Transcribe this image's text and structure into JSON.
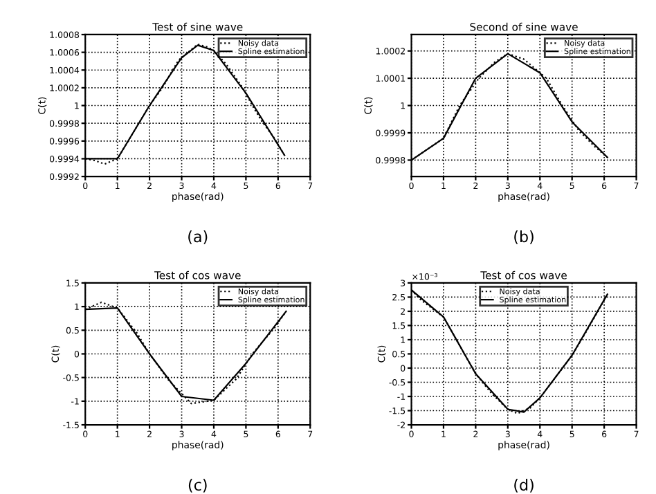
{
  "chart_data": [
    {
      "type": "line",
      "title": "Test of sine wave",
      "xlabel": "phase(rad)",
      "ylabel": "C(t)",
      "annotations": [
        "(a)"
      ],
      "legend": "top right",
      "grid": true,
      "xlim": [
        0,
        7
      ],
      "xticks": [
        0,
        1,
        2,
        3,
        4,
        5,
        6,
        7
      ],
      "ylim": [
        0.9992,
        1.0008
      ],
      "yticks": [
        0.9992,
        0.9994,
        0.9996,
        0.9998,
        1,
        1.0002,
        1.0004,
        1.0006,
        1.0008
      ],
      "series": [
        {
          "name": "Noisy data",
          "color": "#000000",
          "line_style": "dotted",
          "x": [
            0,
            0.3,
            0.6,
            1.0,
            1.5,
            2.0,
            2.4,
            2.9,
            3.2,
            3.5,
            3.8,
            4.0,
            4.4,
            4.9,
            5.2,
            5.5,
            5.85,
            6.2
          ],
          "values": [
            0.9994,
            0.99938,
            0.99934,
            0.9994,
            0.9997,
            1.0,
            1.0002,
            1.00051,
            1.0006,
            1.00069,
            1.00066,
            1.00062,
            1.00046,
            1.0002,
            1.0,
            0.99982,
            0.99965,
            0.99944
          ]
        },
        {
          "name": "Spline estimation",
          "color": "#000000",
          "line_style": "solid",
          "x": [
            0,
            1.0,
            2.0,
            3.0,
            3.5,
            4.0,
            5.0,
            6.2
          ],
          "values": [
            0.9994,
            0.9994,
            1.0,
            1.00054,
            1.00068,
            1.00062,
            1.00014,
            0.99944
          ]
        }
      ]
    },
    {
      "type": "line",
      "title": "Second of sine wave",
      "xlabel": "phase(rad)",
      "ylabel": "C(t)",
      "annotations": [
        "(b)"
      ],
      "legend": "top right",
      "grid": true,
      "xlim": [
        0,
        7
      ],
      "xticks": [
        0,
        1,
        2,
        3,
        4,
        5,
        6,
        7
      ],
      "ylim": [
        0.99974,
        1.00026
      ],
      "yticks": [
        0.9998,
        0.9999,
        1,
        1.0001,
        1.0002
      ],
      "series": [
        {
          "name": "Noisy data",
          "color": "#000000",
          "line_style": "dotted",
          "x": [
            0,
            0.5,
            1.0,
            1.5,
            2.1,
            2.6,
            3.0,
            3.5,
            4.2,
            4.7,
            5.2,
            5.7,
            6.1
          ],
          "values": [
            0.9998,
            0.99984,
            0.99988,
            1.0,
            1.0001,
            1.00016,
            1.00019,
            1.00017,
            1.0001,
            1.0,
            0.99991,
            0.99985,
            0.99981
          ]
        },
        {
          "name": "Spline estimation",
          "color": "#000000",
          "line_style": "solid",
          "x": [
            0,
            1.0,
            2.0,
            3.0,
            4.0,
            5.0,
            6.1
          ],
          "values": [
            0.9998,
            0.99988,
            1.0001,
            1.00019,
            1.00012,
            0.99994,
            0.99981
          ]
        }
      ]
    },
    {
      "type": "line",
      "title": "Test of cos wave",
      "xlabel": "phase(rad)",
      "ylabel": "C(t)",
      "annotations": [
        "(c)"
      ],
      "legend": "top right",
      "grid": true,
      "xlim": [
        0,
        7
      ],
      "xticks": [
        0,
        1,
        2,
        3,
        4,
        5,
        6,
        7
      ],
      "ylim": [
        -1.5,
        1.5
      ],
      "yticks": [
        -1.5,
        -1,
        -0.5,
        0,
        0.5,
        1,
        1.5
      ],
      "series": [
        {
          "name": "Noisy data",
          "color": "#000000",
          "line_style": "dotted",
          "x": [
            0,
            0.5,
            1.0,
            1.6,
            2.0,
            2.6,
            3.3,
            4.0,
            4.7,
            5.2,
            5.9,
            6.25
          ],
          "values": [
            0.94,
            1.09,
            0.97,
            0.45,
            0.0,
            -0.56,
            -1.05,
            -0.98,
            -0.53,
            0.0,
            0.56,
            0.9
          ]
        },
        {
          "name": "Spline estimation",
          "color": "#000000",
          "line_style": "solid",
          "x": [
            0,
            1.0,
            2.0,
            3.0,
            4.0,
            5.0,
            6.25
          ],
          "values": [
            0.94,
            0.97,
            0.0,
            -0.9,
            -0.98,
            -0.2,
            0.9
          ]
        }
      ]
    },
    {
      "type": "line",
      "title": "Test of cos wave",
      "xlabel": "phase(rad)",
      "ylabel": "C(t)",
      "annotations": [
        "(d)",
        "×10⁻³"
      ],
      "legend": "top",
      "grid": true,
      "xlim": [
        0,
        7
      ],
      "xticks": [
        0,
        1,
        2,
        3,
        4,
        5,
        6,
        7
      ],
      "ylim": [
        -2,
        3
      ],
      "yticks": [
        -2,
        -1.5,
        -1,
        -0.5,
        0,
        0.5,
        1,
        1.5,
        2,
        2.5,
        3
      ],
      "series": [
        {
          "name": "Noisy data",
          "color": "#000000",
          "line_style": "dotted",
          "x": [
            0,
            0.3,
            1.0,
            1.5,
            2.0,
            2.5,
            3.0,
            3.3,
            3.7,
            4.0,
            4.5,
            5.0,
            5.5,
            6.0,
            6.1
          ],
          "values": [
            2.75,
            2.4,
            1.8,
            0.8,
            -0.2,
            -0.9,
            -1.45,
            -1.6,
            -1.4,
            -1.05,
            -0.3,
            0.45,
            1.4,
            2.4,
            2.6
          ]
        },
        {
          "name": "Spline estimation",
          "color": "#000000",
          "line_style": "solid",
          "x": [
            0,
            1.0,
            2.0,
            3.0,
            3.5,
            4.0,
            5.0,
            6.1
          ],
          "values": [
            2.75,
            1.8,
            -0.2,
            -1.45,
            -1.55,
            -1.05,
            0.45,
            2.6
          ]
        }
      ]
    }
  ]
}
